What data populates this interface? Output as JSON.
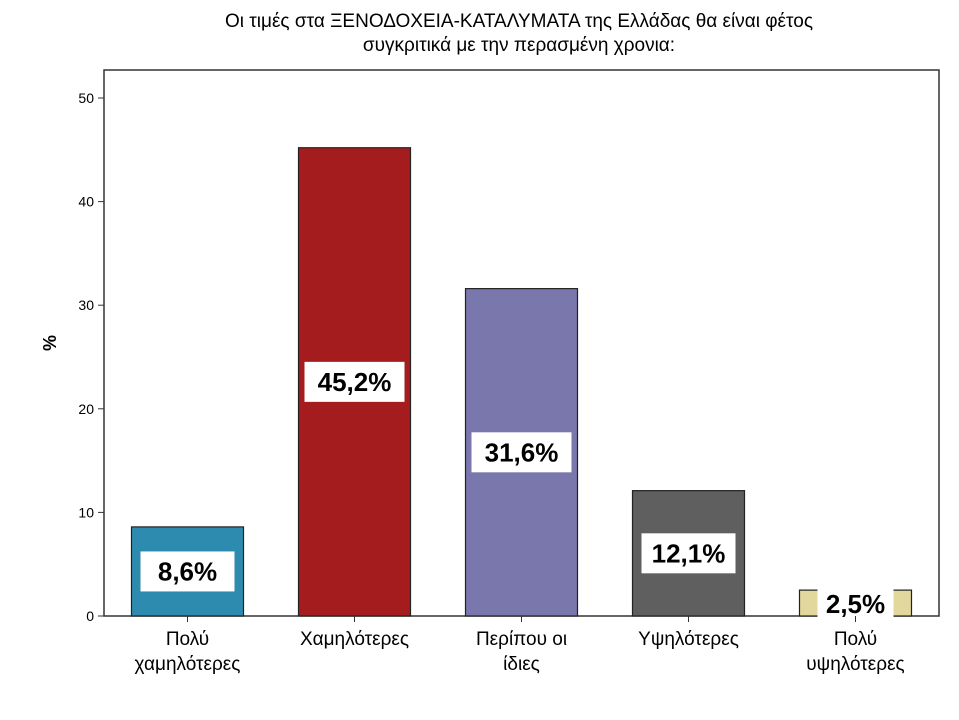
{
  "chart_data": {
    "type": "bar",
    "title_lines": [
      "Οι τιμές στα ΞΕΝΟΔΟΧΕΙΑ-ΚΑΤΑΛΥΜΑΤΑ της Ελλάδας θα είναι φέτος",
      "συγκριτικά με την περασμένη χρονια:"
    ],
    "ylabel": "%",
    "xlabel": "",
    "ylim": [
      0,
      50
    ],
    "yticks": [
      0,
      10,
      20,
      30,
      40,
      50
    ],
    "grid": false,
    "categories": [
      [
        "Πολύ",
        "χαμηλότερες"
      ],
      [
        "Χαμηλότερες"
      ],
      [
        "Περίπου οι",
        "ίδιες"
      ],
      [
        "Υψηλότερες"
      ],
      [
        "Πολύ",
        "υψηλότερες"
      ]
    ],
    "values": [
      8.6,
      45.2,
      31.6,
      12.1,
      2.5
    ],
    "data_labels": [
      "8,6%",
      "45,2%",
      "31,6%",
      "12,1%",
      "2,5%"
    ],
    "colors": [
      "#2e8bb0",
      "#a51c1e",
      "#7a77ad",
      "#5f5f5f",
      "#e2d89e"
    ]
  }
}
